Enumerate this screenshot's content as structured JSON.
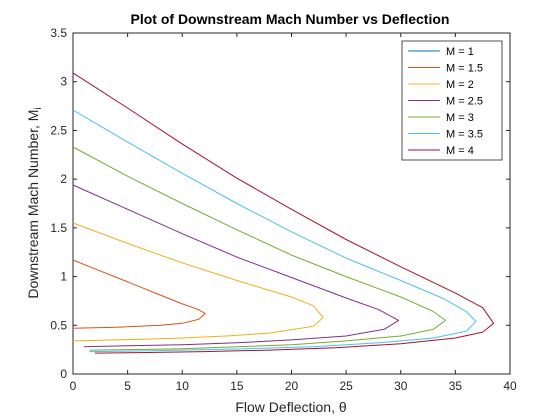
{
  "chart_data": {
    "type": "line",
    "title": "Plot of Downstream Mach Number vs Deflection",
    "xlabel": "Flow Deflection, θ",
    "ylabel_main": "Downstream Mach Number, M",
    "ylabel_sub": "i",
    "xlim": [
      0,
      40
    ],
    "ylim": [
      0,
      3.5
    ],
    "xticks": [
      0,
      5,
      10,
      15,
      20,
      25,
      30,
      35,
      40
    ],
    "yticks": [
      0,
      0.5,
      1,
      1.5,
      2,
      2.5,
      3,
      3.5
    ],
    "grid": false,
    "legend_position": "top-right",
    "series": [
      {
        "name": "M = 1",
        "color": "#0072BD",
        "x": [],
        "y": []
      },
      {
        "name": "M = 1.5",
        "color": "#D95319",
        "x": [
          0.0,
          2.0,
          4.0,
          6.0,
          8.0,
          10.0,
          11.5,
          12.1,
          11.5,
          10.0,
          8.0,
          6.0,
          4.0,
          2.0,
          0.0
        ],
        "y": [
          1.17,
          1.08,
          0.99,
          0.9,
          0.81,
          0.72,
          0.66,
          0.62,
          0.56,
          0.52,
          0.5,
          0.49,
          0.48,
          0.475,
          0.47
        ]
      },
      {
        "name": "M = 2",
        "color": "#EDB120",
        "x": [
          0.0,
          5.0,
          10.0,
          15.0,
          20.0,
          22.0,
          22.9,
          22.0,
          18.0,
          14.0,
          10.0,
          6.0,
          2.0,
          0.0
        ],
        "y": [
          1.55,
          1.34,
          1.14,
          0.96,
          0.79,
          0.7,
          0.58,
          0.49,
          0.42,
          0.39,
          0.37,
          0.355,
          0.345,
          0.34
        ]
      },
      {
        "name": "M = 2.5",
        "color": "#7E2F8E",
        "x": [
          0.0,
          5.0,
          10.0,
          15.0,
          20.0,
          25.0,
          28.0,
          29.8,
          28.5,
          25.0,
          20.0,
          15.0,
          10.0,
          5.0,
          1.0
        ],
        "y": [
          1.94,
          1.69,
          1.44,
          1.2,
          0.99,
          0.78,
          0.66,
          0.55,
          0.46,
          0.39,
          0.35,
          0.32,
          0.3,
          0.29,
          0.28
        ]
      },
      {
        "name": "M = 3",
        "color": "#77AC30",
        "x": [
          0.0,
          5.0,
          10.0,
          15.0,
          20.0,
          25.0,
          30.0,
          33.0,
          34.1,
          33.0,
          30.0,
          25.0,
          20.0,
          15.0,
          10.0,
          5.0,
          1.5
        ],
        "y": [
          2.33,
          2.03,
          1.75,
          1.48,
          1.22,
          1.0,
          0.79,
          0.64,
          0.55,
          0.46,
          0.39,
          0.34,
          0.3,
          0.28,
          0.26,
          0.25,
          0.245
        ]
      },
      {
        "name": "M = 3.5",
        "color": "#4DBEEE",
        "x": [
          0.0,
          5.0,
          10.0,
          15.0,
          20.0,
          25.0,
          30.0,
          34.0,
          36.0,
          36.9,
          36.0,
          33.0,
          28.0,
          22.0,
          16.0,
          10.0,
          5.0,
          1.5
        ],
        "y": [
          2.71,
          2.38,
          2.06,
          1.75,
          1.46,
          1.19,
          0.96,
          0.77,
          0.64,
          0.54,
          0.44,
          0.37,
          0.32,
          0.28,
          0.26,
          0.245,
          0.235,
          0.23
        ]
      },
      {
        "name": "M = 4",
        "color": "#A2142F",
        "x": [
          0.0,
          5.0,
          10.0,
          15.0,
          20.0,
          25.0,
          30.0,
          35.0,
          37.5,
          38.5,
          37.5,
          35.0,
          30.0,
          24.0,
          18.0,
          12.0,
          6.0,
          2.0
        ],
        "y": [
          3.09,
          2.73,
          2.36,
          2.01,
          1.69,
          1.38,
          1.1,
          0.83,
          0.68,
          0.52,
          0.43,
          0.37,
          0.31,
          0.27,
          0.245,
          0.23,
          0.22,
          0.215
        ]
      }
    ]
  }
}
